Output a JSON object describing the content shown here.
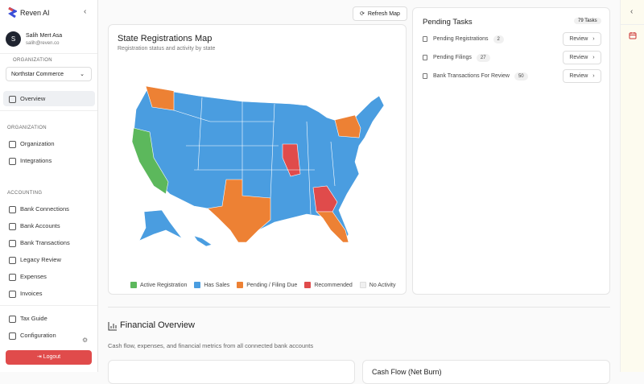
{
  "sidebar": {
    "brand": "Reven AI",
    "user": {
      "initial": "S",
      "name": "Salih Mert Asa",
      "email": "salih@reven.co"
    },
    "org_label": "ORGANIZATION",
    "org_select": "Northstar Commerce",
    "nav": [
      {
        "items": [
          "Overview"
        ]
      },
      {
        "title": "ORGANIZATION",
        "items": [
          "Organization",
          "Integrations"
        ]
      },
      {
        "title": "ACCOUNTING",
        "items": [
          "Bank Connections",
          "Bank Accounts",
          "Bank Transactions",
          "Legacy Review",
          "Expenses",
          "Invoices"
        ]
      },
      {
        "items": [
          "Tax Guide",
          "Configuration"
        ]
      }
    ],
    "logout": "Logout"
  },
  "toolbar": {
    "refresh": "Refresh Map"
  },
  "map_card": {
    "title": "State Registrations Map",
    "subtitle": "Registration status and activity by state",
    "legend": [
      {
        "label": "Active Registration",
        "color": "#5cb85c"
      },
      {
        "label": "Has Sales",
        "color": "#4a9de0"
      },
      {
        "label": "Pending / Filing Due",
        "color": "#ed8134"
      },
      {
        "label": "Recommended",
        "color": "#e04b4b"
      },
      {
        "label": "No Activity",
        "color": "#f0f0f0"
      }
    ]
  },
  "tasks": {
    "title": "Pending Tasks",
    "badge": "79 Tasks",
    "items": [
      {
        "label": "Pending Registrations",
        "count": 2,
        "action": "Review"
      },
      {
        "label": "Pending Filings",
        "count": 27,
        "action": "Review"
      },
      {
        "label": "Bank Transactions For Review",
        "count": 50,
        "action": "Review"
      }
    ]
  },
  "financial": {
    "title": "Financial Overview",
    "subtitle": "Cash flow, expenses, and financial metrics from all connected bank accounts",
    "card_right": "Cash Flow (Net Burn)"
  }
}
